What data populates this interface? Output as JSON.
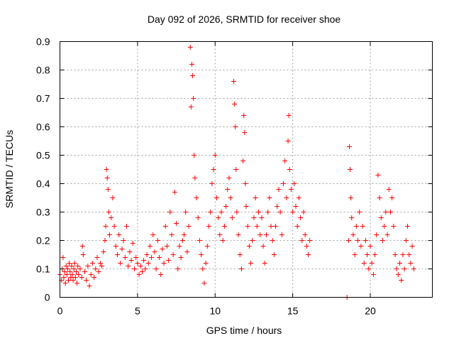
{
  "chart_data": {
    "type": "scatter",
    "title": "Day 092 of 2026, SRMTID for receiver shoe",
    "xlabel": "GPS time / hours",
    "ylabel": "SRMTID / TECUs",
    "xlim": [
      0,
      24
    ],
    "ylim": [
      0,
      0.9
    ],
    "x_ticks": [
      0,
      5,
      10,
      15,
      20
    ],
    "x_tick_labels": [
      "0",
      "5",
      "10",
      "15",
      "20"
    ],
    "y_ticks": [
      0,
      0.1,
      0.2,
      0.3,
      0.4,
      0.5,
      0.6,
      0.7,
      0.8,
      0.9
    ],
    "y_tick_labels": [
      "0",
      "0.1",
      "0.2",
      "0.3",
      "0.4",
      "0.5",
      "0.6",
      "0.7",
      "0.8",
      "0.9"
    ],
    "grid": true,
    "marker": "+",
    "color": "#ff0000",
    "series": [
      {
        "name": "SRMTID",
        "points": [
          [
            0.0,
            0.08
          ],
          [
            0.1,
            0.06
          ],
          [
            0.15,
            0.1
          ],
          [
            0.2,
            0.14
          ],
          [
            0.25,
            0.07
          ],
          [
            0.3,
            0.09
          ],
          [
            0.35,
            0.05
          ],
          [
            0.4,
            0.11
          ],
          [
            0.45,
            0.08
          ],
          [
            0.5,
            0.1
          ],
          [
            0.55,
            0.06
          ],
          [
            0.6,
            0.12
          ],
          [
            0.65,
            0.09
          ],
          [
            0.7,
            0.07
          ],
          [
            0.75,
            0.11
          ],
          [
            0.8,
            0.08
          ],
          [
            0.85,
            0.06
          ],
          [
            0.9,
            0.1
          ],
          [
            0.95,
            0.12
          ],
          [
            1.0,
            0.07
          ],
          [
            1.05,
            0.09
          ],
          [
            1.1,
            0.05
          ],
          [
            1.15,
            0.11
          ],
          [
            1.2,
            0.08
          ],
          [
            1.3,
            0.1
          ],
          [
            1.4,
            0.07
          ],
          [
            1.45,
            0.18
          ],
          [
            1.5,
            0.15
          ],
          [
            1.6,
            0.09
          ],
          [
            1.7,
            0.06
          ],
          [
            1.8,
            0.11
          ],
          [
            1.9,
            0.04
          ],
          [
            2.0,
            0.08
          ],
          [
            2.1,
            0.12
          ],
          [
            2.2,
            0.07
          ],
          [
            2.3,
            0.1
          ],
          [
            2.4,
            0.14
          ],
          [
            2.5,
            0.09
          ],
          [
            2.6,
            0.12
          ],
          [
            2.7,
            0.11
          ],
          [
            2.8,
            0.16
          ],
          [
            2.9,
            0.2
          ],
          [
            2.95,
            0.25
          ],
          [
            3.0,
            0.45
          ],
          [
            3.05,
            0.42
          ],
          [
            3.1,
            0.38
          ],
          [
            3.15,
            0.3
          ],
          [
            3.2,
            0.22
          ],
          [
            3.3,
            0.28
          ],
          [
            3.4,
            0.35
          ],
          [
            3.5,
            0.25
          ],
          [
            3.6,
            0.18
          ],
          [
            3.7,
            0.15
          ],
          [
            3.8,
            0.22
          ],
          [
            3.9,
            0.12
          ],
          [
            4.0,
            0.17
          ],
          [
            4.1,
            0.2
          ],
          [
            4.2,
            0.14
          ],
          [
            4.3,
            0.25
          ],
          [
            4.4,
            0.11
          ],
          [
            4.5,
            0.16
          ],
          [
            4.6,
            0.13
          ],
          [
            4.7,
            0.19
          ],
          [
            4.8,
            0.1
          ],
          [
            4.9,
            0.14
          ],
          [
            5.0,
            0.12
          ],
          [
            5.1,
            0.08
          ],
          [
            5.2,
            0.11
          ],
          [
            5.3,
            0.09
          ],
          [
            5.4,
            0.13
          ],
          [
            5.5,
            0.1
          ],
          [
            5.6,
            0.15
          ],
          [
            5.7,
            0.12
          ],
          [
            5.8,
            0.18
          ],
          [
            5.9,
            0.14
          ],
          [
            6.0,
            0.22
          ],
          [
            6.1,
            0.16
          ],
          [
            6.2,
            0.1
          ],
          [
            6.3,
            0.2
          ],
          [
            6.4,
            0.14
          ],
          [
            6.5,
            0.08
          ],
          [
            6.6,
            0.17
          ],
          [
            6.7,
            0.12
          ],
          [
            6.8,
            0.25
          ],
          [
            6.9,
            0.18
          ],
          [
            7.0,
            0.13
          ],
          [
            7.1,
            0.3
          ],
          [
            7.2,
            0.22
          ],
          [
            7.3,
            0.15
          ],
          [
            7.4,
            0.37
          ],
          [
            7.5,
            0.26
          ],
          [
            7.6,
            0.1
          ],
          [
            7.7,
            0.18
          ],
          [
            7.8,
            0.14
          ],
          [
            7.9,
            0.2
          ],
          [
            8.0,
            0.22
          ],
          [
            8.1,
            0.3
          ],
          [
            8.2,
            0.16
          ],
          [
            8.3,
            0.25
          ],
          [
            8.4,
            0.88
          ],
          [
            8.45,
            0.67
          ],
          [
            8.5,
            0.82
          ],
          [
            8.55,
            0.78
          ],
          [
            8.6,
            0.7
          ],
          [
            8.65,
            0.5
          ],
          [
            8.7,
            0.42
          ],
          [
            8.8,
            0.35
          ],
          [
            8.9,
            0.28
          ],
          [
            9.0,
            0.2
          ],
          [
            9.1,
            0.15
          ],
          [
            9.2,
            0.1
          ],
          [
            9.3,
            0.05
          ],
          [
            9.4,
            0.12
          ],
          [
            9.5,
            0.18
          ],
          [
            9.6,
            0.25
          ],
          [
            9.7,
            0.3
          ],
          [
            9.8,
            0.4
          ],
          [
            9.9,
            0.45
          ],
          [
            10.0,
            0.5
          ],
          [
            10.1,
            0.35
          ],
          [
            10.2,
            0.28
          ],
          [
            10.3,
            0.22
          ],
          [
            10.4,
            0.3
          ],
          [
            10.5,
            0.2
          ],
          [
            10.6,
            0.25
          ],
          [
            10.7,
            0.32
          ],
          [
            10.8,
            0.38
          ],
          [
            10.9,
            0.42
          ],
          [
            11.0,
            0.35
          ],
          [
            11.1,
            0.28
          ],
          [
            11.2,
            0.76
          ],
          [
            11.25,
            0.68
          ],
          [
            11.3,
            0.6
          ],
          [
            11.35,
            0.45
          ],
          [
            11.4,
            0.3
          ],
          [
            11.5,
            0.22
          ],
          [
            11.6,
            0.15
          ],
          [
            11.7,
            0.1
          ],
          [
            11.8,
            0.48
          ],
          [
            11.85,
            0.64
          ],
          [
            11.9,
            0.58
          ],
          [
            11.95,
            0.4
          ],
          [
            12.0,
            0.32
          ],
          [
            12.1,
            0.25
          ],
          [
            12.2,
            0.18
          ],
          [
            12.3,
            0.12
          ],
          [
            12.4,
            0.2
          ],
          [
            12.5,
            0.28
          ],
          [
            12.6,
            0.35
          ],
          [
            12.7,
            0.25
          ],
          [
            12.8,
            0.3
          ],
          [
            12.9,
            0.22
          ],
          [
            13.0,
            0.28
          ],
          [
            13.1,
            0.18
          ],
          [
            13.2,
            0.12
          ],
          [
            13.3,
            0.22
          ],
          [
            13.4,
            0.3
          ],
          [
            13.5,
            0.35
          ],
          [
            13.6,
            0.25
          ],
          [
            13.7,
            0.2
          ],
          [
            13.8,
            0.15
          ],
          [
            13.9,
            0.25
          ],
          [
            14.0,
            0.32
          ],
          [
            14.1,
            0.38
          ],
          [
            14.2,
            0.3
          ],
          [
            14.3,
            0.22
          ],
          [
            14.4,
            0.4
          ],
          [
            14.5,
            0.48
          ],
          [
            14.6,
            0.35
          ],
          [
            14.7,
            0.55
          ],
          [
            14.75,
            0.64
          ],
          [
            14.8,
            0.45
          ],
          [
            14.9,
            0.38
          ],
          [
            15.0,
            0.3
          ],
          [
            15.1,
            0.4
          ],
          [
            15.2,
            0.32
          ],
          [
            15.3,
            0.25
          ],
          [
            15.4,
            0.35
          ],
          [
            15.5,
            0.28
          ],
          [
            15.6,
            0.2
          ],
          [
            15.7,
            0.3
          ],
          [
            15.8,
            0.22
          ],
          [
            15.9,
            0.18
          ],
          [
            16.0,
            0.15
          ],
          [
            16.1,
            0.2
          ],
          [
            18.5,
            0.0
          ],
          [
            18.6,
            0.2
          ],
          [
            18.65,
            0.53
          ],
          [
            18.7,
            0.45
          ],
          [
            18.75,
            0.35
          ],
          [
            18.8,
            0.28
          ],
          [
            18.9,
            0.22
          ],
          [
            19.0,
            0.15
          ],
          [
            19.1,
            0.25
          ],
          [
            19.2,
            0.2
          ],
          [
            19.3,
            0.3
          ],
          [
            19.4,
            0.18
          ],
          [
            19.5,
            0.25
          ],
          [
            19.6,
            0.12
          ],
          [
            19.7,
            0.2
          ],
          [
            19.8,
            0.15
          ],
          [
            19.9,
            0.1
          ],
          [
            20.0,
            0.18
          ],
          [
            20.1,
            0.12
          ],
          [
            20.2,
            0.08
          ],
          [
            20.3,
            0.15
          ],
          [
            20.4,
            0.22
          ],
          [
            20.5,
            0.43
          ],
          [
            20.6,
            0.35
          ],
          [
            20.7,
            0.28
          ],
          [
            20.8,
            0.2
          ],
          [
            20.9,
            0.25
          ],
          [
            21.0,
            0.3
          ],
          [
            21.1,
            0.22
          ],
          [
            21.2,
            0.38
          ],
          [
            21.3,
            0.3
          ],
          [
            21.4,
            0.35
          ],
          [
            21.5,
            0.25
          ],
          [
            21.6,
            0.15
          ],
          [
            21.7,
            0.1
          ],
          [
            21.8,
            0.08
          ],
          [
            21.9,
            0.12
          ],
          [
            22.0,
            0.06
          ],
          [
            22.1,
            0.15
          ],
          [
            22.2,
            0.1
          ],
          [
            22.3,
            0.2
          ],
          [
            22.4,
            0.25
          ],
          [
            22.5,
            0.15
          ],
          [
            22.6,
            0.12
          ],
          [
            22.7,
            0.18
          ],
          [
            22.8,
            0.1
          ]
        ]
      }
    ]
  }
}
